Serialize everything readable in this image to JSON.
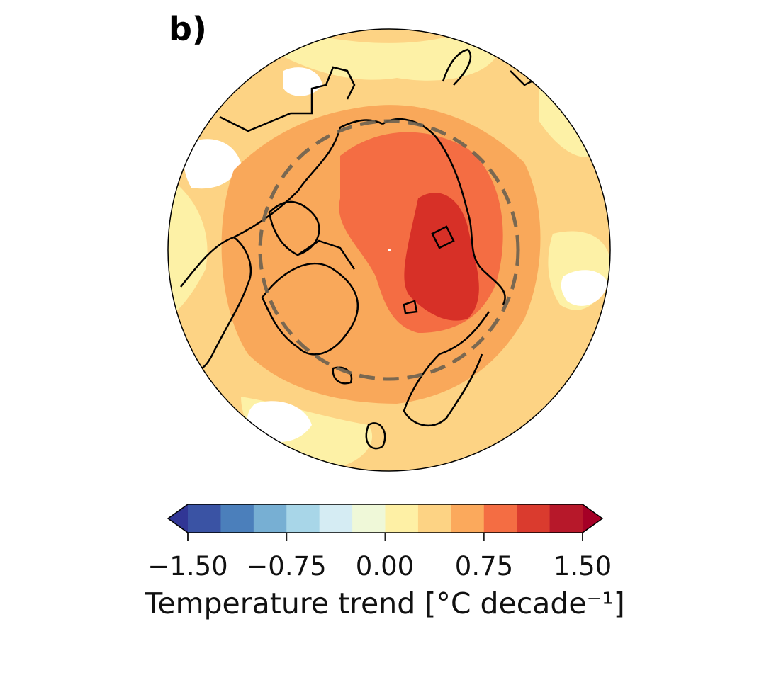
{
  "panel_label": "b)",
  "map": {
    "projection": "north-polar-stereographic",
    "dashed_circle": "Arctic region boundary",
    "colors": {
      "background": "#fdd384",
      "pale": "#fdf1a6",
      "orange": "#f9a85a",
      "red_orange": "#f46d43",
      "red": "#d73027"
    }
  },
  "colorbar": {
    "label": "Temperature trend [°C decade⁻¹]",
    "range": [
      -1.5,
      1.5
    ],
    "step": 0.25,
    "ticks": [
      "−1.50",
      "−0.75",
      "0.00",
      "0.75",
      "1.50"
    ],
    "tick_values": [
      -1.5,
      -0.75,
      0,
      0.75,
      1.5
    ],
    "colors": [
      "#3a53a4",
      "#4b7fbb",
      "#77afd3",
      "#a8d6e8",
      "#d5ecf3",
      "#eff8d8",
      "#fef0a5",
      "#fdd384",
      "#fba95c",
      "#f46d43",
      "#da3b2e",
      "#b7182a"
    ],
    "under_color": "#313695",
    "over_color": "#a50026",
    "extend": "both"
  }
}
